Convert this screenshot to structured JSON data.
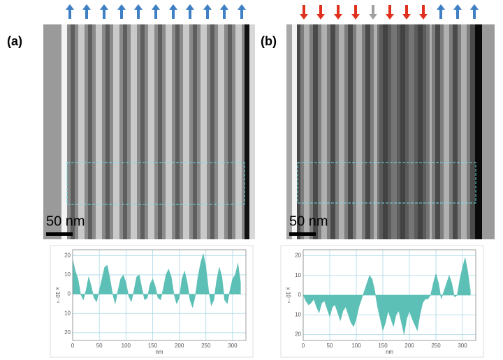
{
  "panel_labels": [
    "(a)",
    "(b)"
  ],
  "scale_bars": [
    "50 nm",
    "50 nm"
  ],
  "chart_data": [
    {
      "type": "area",
      "color": "#5cc0b6",
      "grid": true,
      "xlabel": "nm",
      "ylabel": "x 10⁻⁴",
      "xlim": [
        0,
        325
      ],
      "xticks": [
        0,
        50,
        100,
        150,
        200,
        250,
        300
      ],
      "ylim": [
        -24,
        23
      ],
      "yticks": [
        20,
        10,
        0,
        {
          "value": -10,
          "label": "10"
        },
        {
          "value": -20,
          "label": "20"
        }
      ],
      "x": [
        0,
        5,
        10,
        15,
        20,
        25,
        30,
        35,
        40,
        45,
        50,
        55,
        60,
        65,
        70,
        75,
        80,
        85,
        90,
        95,
        100,
        105,
        110,
        115,
        120,
        125,
        130,
        135,
        140,
        145,
        150,
        155,
        160,
        165,
        170,
        175,
        180,
        185,
        190,
        195,
        200,
        205,
        210,
        215,
        220,
        225,
        230,
        235,
        240,
        245,
        250,
        255,
        260,
        265,
        270,
        275,
        280,
        285,
        290,
        295,
        300,
        305,
        310,
        315
      ],
      "values": [
        18,
        12,
        8,
        0,
        -3,
        2,
        9,
        4,
        -2,
        -4,
        2,
        8,
        14,
        15,
        8,
        0,
        -5,
        2,
        8,
        10,
        6,
        -1,
        -4,
        2,
        9,
        10,
        3,
        -3,
        -2,
        5,
        8,
        4,
        -2,
        -3,
        3,
        10,
        13,
        9,
        0,
        -5,
        -2,
        8,
        12,
        6,
        -3,
        -7,
        -1,
        9,
        16,
        21,
        14,
        2,
        -6,
        -3,
        7,
        14,
        9,
        -3,
        -5,
        2,
        8,
        10,
        16,
        6
      ]
    },
    {
      "type": "area",
      "color": "#5cc0b6",
      "grid": true,
      "xlabel": "nm",
      "ylabel": "x 10⁻⁴",
      "xlim": [
        0,
        325
      ],
      "xticks": [
        0,
        50,
        100,
        150,
        200,
        250,
        300
      ],
      "ylim": [
        -23,
        23
      ],
      "yticks": [
        20,
        10,
        0,
        {
          "value": -10,
          "label": "10"
        },
        {
          "value": -20,
          "label": "20"
        }
      ],
      "x": [
        0,
        5,
        10,
        15,
        20,
        25,
        30,
        35,
        40,
        45,
        50,
        55,
        60,
        65,
        70,
        75,
        80,
        85,
        90,
        95,
        100,
        105,
        110,
        115,
        120,
        125,
        130,
        135,
        140,
        145,
        150,
        155,
        160,
        165,
        170,
        175,
        180,
        185,
        190,
        195,
        200,
        205,
        210,
        215,
        220,
        225,
        230,
        235,
        240,
        245,
        250,
        255,
        260,
        265,
        270,
        275,
        280,
        285,
        290,
        295,
        300,
        305,
        310,
        315
      ],
      "values": [
        0,
        -3,
        -5,
        -4,
        -2,
        -6,
        -9,
        -4,
        -3,
        -7,
        -11,
        -6,
        -5,
        -9,
        -13,
        -8,
        -6,
        -10,
        -14,
        -16,
        -12,
        -6,
        -2,
        2,
        6,
        10,
        8,
        2,
        -6,
        -12,
        -18,
        -14,
        -8,
        -12,
        -16,
        -10,
        -8,
        -14,
        -20,
        -12,
        -8,
        -12,
        -15,
        -18,
        -10,
        -4,
        -2,
        -2,
        0,
        6,
        11,
        6,
        -2,
        2,
        6,
        10,
        6,
        -1,
        0,
        8,
        14,
        19,
        12,
        2
      ]
    }
  ]
}
